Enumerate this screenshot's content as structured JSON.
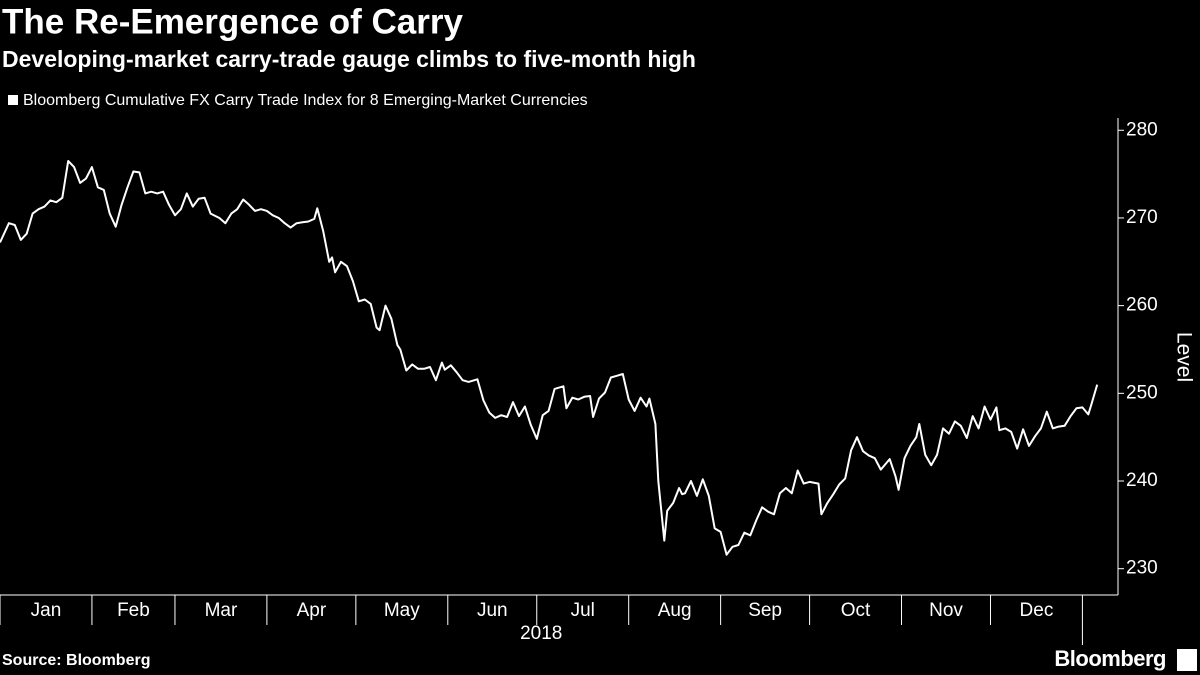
{
  "chart_data": {
    "type": "line",
    "title": "The Re-Emergence of Carry",
    "subtitle": "Developing-market carry-trade gauge climbs to five-month high",
    "y_label": "Level",
    "x_label": "2018",
    "source": "Source: Bloomberg",
    "brand": "Bloomberg",
    "month_labels": [
      "Jan",
      "Feb",
      "Mar",
      "Apr",
      "May",
      "Jun",
      "Jul",
      "Aug",
      "Sep",
      "Oct",
      "Nov",
      "Dec"
    ],
    "xticks": [
      0,
      31,
      59,
      90,
      120,
      151,
      181,
      212,
      243,
      273,
      304,
      334,
      365
    ],
    "xlim": [
      0,
      377
    ],
    "ylim": [
      227,
      281.4
    ],
    "yticks": [
      230,
      240,
      250,
      260,
      270,
      280
    ],
    "x": [
      0,
      3,
      5,
      7,
      9,
      11,
      13,
      15,
      17,
      19,
      21,
      23,
      25,
      27,
      29,
      31,
      33,
      35,
      37,
      39,
      41,
      43,
      45,
      47,
      49,
      51,
      53,
      55,
      57,
      59,
      61,
      63,
      65,
      67,
      69,
      71,
      74,
      76,
      78,
      80,
      82,
      84,
      86,
      88,
      90,
      92,
      94,
      96,
      98,
      100,
      102,
      104,
      106,
      107,
      109,
      111,
      112,
      113,
      115,
      117,
      119,
      121,
      123,
      125,
      127,
      128,
      130,
      132,
      134,
      135,
      137,
      139,
      141,
      143,
      145,
      147,
      149,
      150,
      152,
      154,
      156,
      158,
      161,
      163,
      165,
      167,
      169,
      171,
      173,
      175,
      177,
      179,
      181,
      183,
      185,
      187,
      190,
      191,
      193,
      195,
      197,
      199,
      200,
      202,
      204,
      206,
      208,
      210,
      212,
      214,
      216,
      218,
      219,
      221,
      222,
      224,
      225,
      227,
      229,
      230,
      231,
      233,
      235,
      237,
      239,
      241,
      243,
      245,
      247,
      249,
      251,
      253,
      255,
      257,
      259,
      261,
      263,
      265,
      267,
      269,
      271,
      273,
      276,
      277,
      279,
      281,
      283,
      285,
      287,
      289,
      291,
      293,
      295,
      297,
      300,
      302,
      303,
      305,
      307,
      309,
      310,
      312,
      314,
      316,
      318,
      320,
      322,
      324,
      326,
      328,
      330,
      332,
      334,
      336,
      337,
      339,
      341,
      343,
      345,
      347,
      349,
      351,
      353,
      355,
      357,
      359,
      361,
      363,
      365,
      367,
      368,
      370
    ],
    "series": [
      {
        "name": "Bloomberg Cumulative FX Carry Trade Index for 8 Emerging-Market Currencies",
        "color": "#ffffff",
        "values": [
          267.2,
          269.4,
          269.2,
          267.5,
          268.2,
          270.5,
          271,
          271.3,
          272,
          271.8,
          272.3,
          276.5,
          275.8,
          274,
          274.5,
          275.8,
          273.5,
          273.2,
          270.5,
          269,
          271.5,
          273.5,
          275.3,
          275.2,
          272.8,
          273,
          272.8,
          273,
          271.5,
          270.3,
          271,
          272.8,
          271.3,
          272.2,
          272.3,
          270.5,
          270,
          269.4,
          270.5,
          271,
          272.1,
          271.5,
          270.8,
          271,
          270.8,
          270.3,
          270,
          269.4,
          268.9,
          269.4,
          269.5,
          269.6,
          269.9,
          271.1,
          268.5,
          265,
          265.5,
          263.8,
          265,
          264.5,
          262.8,
          260.5,
          260.7,
          260.2,
          257.5,
          257.2,
          260,
          258.5,
          255.5,
          255,
          252.6,
          253.3,
          252.8,
          252.8,
          253,
          251.5,
          253.5,
          252.7,
          253.2,
          252.4,
          251.5,
          251.3,
          251.6,
          249.2,
          247.8,
          247.2,
          247.5,
          247.3,
          249,
          247.4,
          248.5,
          246.4,
          244.8,
          247.5,
          248,
          250.5,
          250.8,
          248.3,
          249.5,
          249.3,
          249.6,
          249.7,
          247.3,
          249.4,
          250.1,
          251.8,
          252,
          252.2,
          249.3,
          248,
          249.5,
          248.5,
          249.4,
          246.5,
          240,
          233.2,
          236.6,
          237.5,
          239.2,
          238.5,
          238.6,
          240,
          238.3,
          240.2,
          238.3,
          234.6,
          234.2,
          231.6,
          232.5,
          232.7,
          234.1,
          233.8,
          235.5,
          237,
          236.5,
          236.2,
          238.6,
          239.2,
          238.6,
          241.2,
          239.7,
          239.9,
          239.7,
          236.2,
          237.5,
          238.5,
          239.6,
          240.3,
          243.5,
          245,
          243.4,
          242.9,
          242.6,
          241.3,
          242.5,
          240.5,
          239,
          242.6,
          244,
          245,
          246.5,
          243,
          241.8,
          243,
          246,
          245.4,
          246.8,
          246.3,
          244.9,
          247.4,
          246,
          248.5,
          247,
          248.4,
          245.8,
          246,
          245.6,
          243.7,
          245.9,
          244,
          245.1,
          246,
          247.9,
          246,
          246.2,
          246.3,
          247.4,
          248.3,
          248.4,
          247.6,
          248.7,
          251
        ]
      }
    ]
  }
}
